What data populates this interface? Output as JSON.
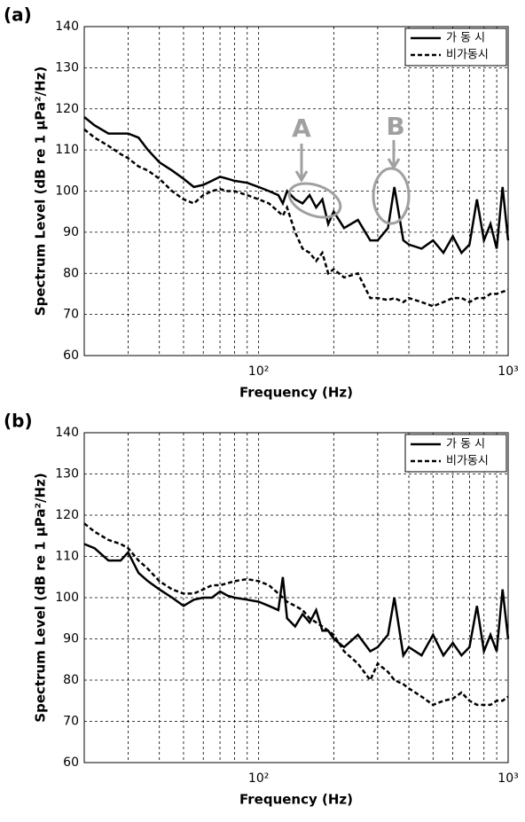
{
  "chart_data": [
    {
      "type": "line",
      "title": "(a)",
      "xlabel": "Frequency (Hz)",
      "ylabel": "Spectrum Level (dB re 1 μPa²/Hz)",
      "log_x": true,
      "grid": true,
      "legend": "upper right",
      "annotations": [
        "A",
        "B"
      ],
      "xlim": [
        20,
        1000
      ],
      "ylim": [
        60,
        140
      ],
      "xticks": [
        {
          "value": 100,
          "label": "10²"
        },
        {
          "value": 1000,
          "label": "10³"
        }
      ],
      "yticks": [
        60,
        70,
        80,
        90,
        100,
        110,
        120,
        130,
        140
      ],
      "x": [
        20,
        22,
        25,
        28,
        30,
        33,
        36,
        40,
        45,
        50,
        55,
        60,
        65,
        70,
        75,
        80,
        90,
        100,
        110,
        120,
        125,
        130,
        140,
        150,
        160,
        170,
        180,
        190,
        200,
        220,
        250,
        280,
        300,
        330,
        350,
        380,
        400,
        450,
        500,
        550,
        600,
        650,
        700,
        750,
        800,
        850,
        900,
        950,
        1000
      ],
      "series": [
        {
          "name": "가 동 시",
          "color": "#000000",
          "dash": "solid",
          "values": [
            118,
            116,
            114,
            114,
            114,
            113,
            110,
            107,
            105,
            103,
            101,
            101.5,
            102.5,
            103.5,
            103,
            102.5,
            102,
            101,
            100,
            99,
            97,
            100,
            98,
            97,
            99,
            96,
            98,
            92,
            95,
            91,
            93,
            88,
            88,
            91,
            101,
            88,
            87,
            86,
            88,
            85,
            89,
            85,
            87,
            98,
            88,
            92,
            86,
            101,
            88
          ]
        },
        {
          "name": "비가동시",
          "color": "#000000",
          "dash": "dashed",
          "values": [
            115,
            113,
            111,
            109,
            108,
            106,
            105,
            103,
            100,
            98,
            97,
            99,
            100,
            100.5,
            100,
            100,
            99,
            98,
            97,
            95,
            94,
            96,
            90,
            86,
            85,
            83,
            85,
            80,
            81,
            79,
            80,
            74,
            74,
            73.5,
            74,
            73,
            74,
            73,
            72,
            73,
            74,
            74,
            73,
            74,
            74,
            75,
            75,
            75.5,
            76
          ]
        }
      ]
    },
    {
      "type": "line",
      "title": "(b)",
      "xlabel": "Frequency (Hz)",
      "ylabel": "Spectrum Level (dB re 1 μPa²/Hz)",
      "log_x": true,
      "grid": true,
      "legend": "upper right",
      "xlim": [
        20,
        1000
      ],
      "ylim": [
        60,
        140
      ],
      "xticks": [
        {
          "value": 100,
          "label": "10²"
        },
        {
          "value": 1000,
          "label": "10³"
        }
      ],
      "yticks": [
        60,
        70,
        80,
        90,
        100,
        110,
        120,
        130,
        140
      ],
      "x": [
        20,
        22,
        25,
        28,
        30,
        33,
        36,
        40,
        45,
        50,
        55,
        60,
        65,
        70,
        75,
        80,
        90,
        100,
        110,
        120,
        125,
        130,
        140,
        150,
        160,
        170,
        180,
        190,
        200,
        220,
        250,
        280,
        300,
        330,
        350,
        380,
        400,
        450,
        500,
        550,
        600,
        650,
        700,
        750,
        800,
        850,
        900,
        950,
        1000
      ],
      "series": [
        {
          "name": "가 동 시",
          "color": "#000000",
          "dash": "solid",
          "values": [
            113,
            112,
            109,
            109,
            111,
            106,
            104,
            102,
            100,
            98,
            99.5,
            100,
            100,
            101.5,
            100.5,
            100,
            99.5,
            99,
            98,
            97,
            105,
            95,
            93,
            96,
            94,
            97,
            92,
            92,
            90,
            88,
            91,
            87,
            88,
            91,
            100,
            86,
            88,
            86,
            91,
            86,
            89,
            86,
            88,
            98,
            87,
            91,
            87,
            102,
            90
          ]
        },
        {
          "name": "비가동시",
          "color": "#000000",
          "dash": "dashed",
          "values": [
            118,
            116,
            114,
            113,
            112,
            109,
            107,
            104,
            102,
            101,
            101,
            102,
            103,
            103,
            103.5,
            104,
            104.5,
            104,
            103,
            101,
            100,
            99,
            98,
            97,
            95,
            94,
            93,
            92,
            91,
            87,
            84,
            80,
            84,
            82,
            80,
            79,
            78,
            76,
            74,
            75,
            75.5,
            77,
            75,
            74,
            74,
            74,
            75,
            75,
            76
          ]
        }
      ]
    }
  ]
}
